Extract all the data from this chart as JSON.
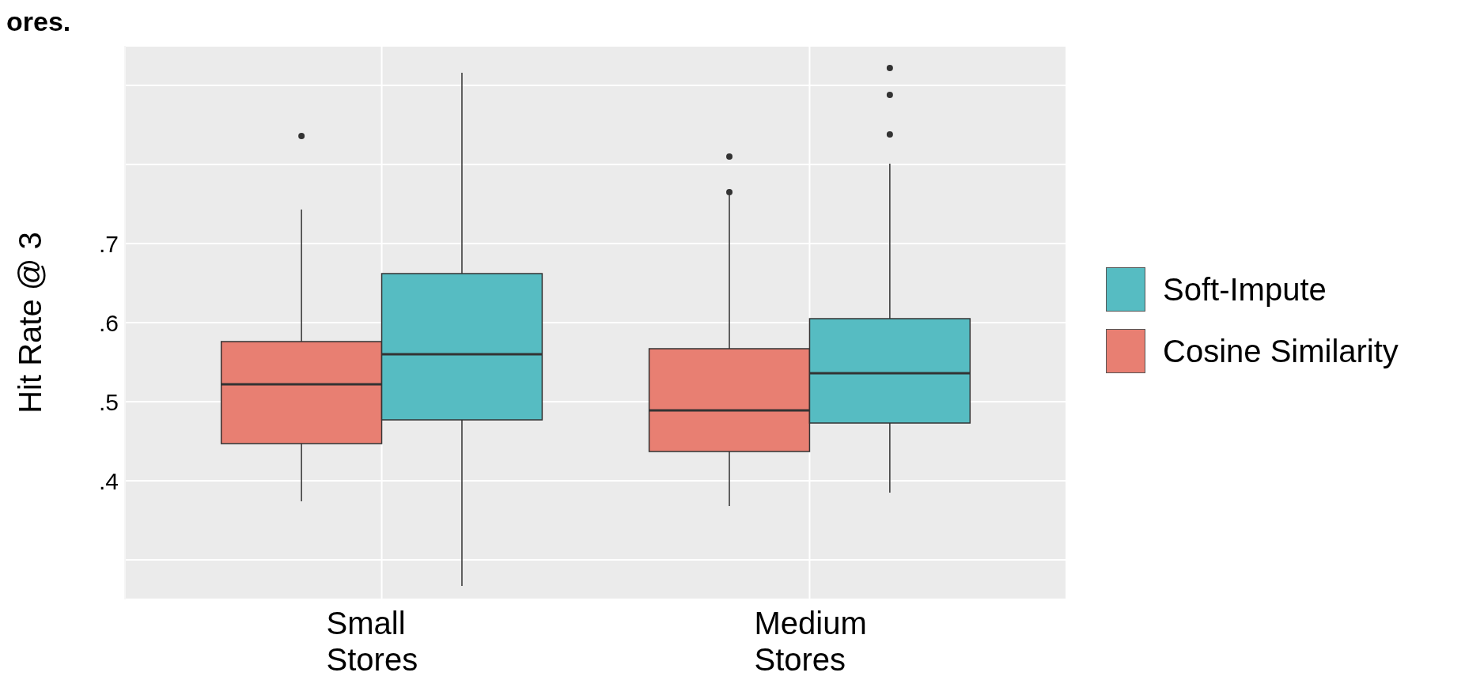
{
  "chart_data": {
    "type": "box",
    "title": "ores.",
    "ylabel": "Hit Rate @ 3",
    "categories": [
      "Small Stores",
      "Medium Stores"
    ],
    "series": [
      {
        "name": "Cosine Similarity",
        "color": "#e87f72",
        "boxes": [
          {
            "low": 0.374,
            "q1": 0.447,
            "median": 0.522,
            "q3": 0.576,
            "high": 0.743,
            "outliers": [
              0.836
            ]
          },
          {
            "low": 0.368,
            "q1": 0.437,
            "median": 0.489,
            "q3": 0.567,
            "high": 0.761,
            "outliers": [
              0.765,
              0.81
            ]
          }
        ]
      },
      {
        "name": "Soft-Impute",
        "color": "#56bcc2",
        "boxes": [
          {
            "low": 0.267,
            "q1": 0.477,
            "median": 0.56,
            "q3": 0.662,
            "high": 0.916
          },
          {
            "low": 0.385,
            "q1": 0.473,
            "median": 0.536,
            "q3": 0.605,
            "high": 0.801,
            "outliers": [
              0.838,
              0.888,
              0.922
            ]
          }
        ]
      }
    ],
    "ylim": [
      0.25,
      0.95
    ],
    "yticks": [
      {
        "value": 0.3,
        "label": null
      },
      {
        "value": 0.4,
        "label": ".4"
      },
      {
        "value": 0.5,
        "label": ".5"
      },
      {
        "value": 0.6,
        "label": ".6"
      },
      {
        "value": 0.7,
        "label": ".7"
      },
      {
        "value": 0.8,
        "label": null
      },
      {
        "value": 0.9,
        "label": null
      }
    ],
    "grid": true,
    "legend": "right"
  }
}
